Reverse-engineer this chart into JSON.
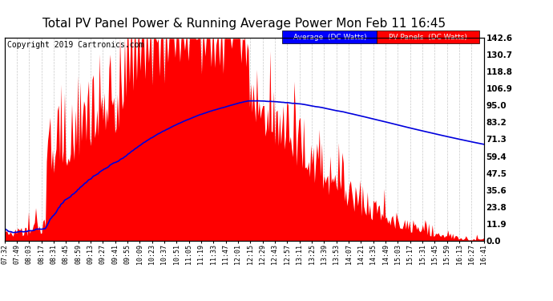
{
  "title": "Total PV Panel Power & Running Average Power Mon Feb 11 16:45",
  "copyright": "Copyright 2019 Cartronics.com",
  "ylabel_right": [
    "0.0",
    "11.9",
    "23.8",
    "35.6",
    "47.5",
    "59.4",
    "71.3",
    "83.2",
    "95.0",
    "106.9",
    "118.8",
    "130.7",
    "142.6"
  ],
  "ytick_values": [
    0.0,
    11.9,
    23.8,
    35.6,
    47.5,
    59.4,
    71.3,
    83.2,
    95.0,
    106.9,
    118.8,
    130.7,
    142.6
  ],
  "ylim": [
    0,
    142.6
  ],
  "background_color": "#ffffff",
  "grid_color": "#bbbbbb",
  "bar_color": "#ff0000",
  "avg_color": "#0000dd",
  "legend_avg_label": "Average  (DC Watts)",
  "legend_pv_label": "PV Panels  (DC Watts)",
  "title_fontsize": 11,
  "copyright_fontsize": 7,
  "xtick_labels": [
    "07:32",
    "07:49",
    "08:03",
    "08:17",
    "08:31",
    "08:45",
    "08:59",
    "09:13",
    "09:27",
    "09:41",
    "09:55",
    "10:09",
    "10:23",
    "10:37",
    "10:51",
    "11:05",
    "11:19",
    "11:33",
    "11:47",
    "12:01",
    "12:15",
    "12:29",
    "12:43",
    "12:57",
    "13:11",
    "13:25",
    "13:39",
    "13:53",
    "14:07",
    "14:21",
    "14:35",
    "14:49",
    "15:03",
    "15:17",
    "15:31",
    "15:45",
    "15:59",
    "16:13",
    "16:27",
    "16:41"
  ],
  "n_points": 400
}
